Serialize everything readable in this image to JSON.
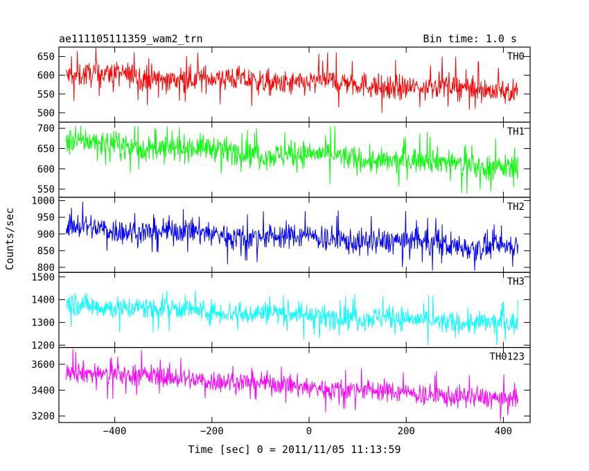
{
  "chart_data": {
    "type": "line",
    "title": "ae111105111359_wam2_trn",
    "subtitle": "Bin time: 1.0 s",
    "xlabel": "Time [sec] 0 = 2011/11/05 11:13:59",
    "ylabel": "Counts/sec",
    "xlim": [
      -515,
      455
    ],
    "xticks": [
      -400,
      -200,
      0,
      200,
      400
    ],
    "xtick_labels": [
      "−400",
      "−200",
      "0",
      "200",
      "400"
    ],
    "x_start": -500,
    "x_end": 430,
    "bin": 1.0,
    "grid": false,
    "panels": [
      {
        "name": "TH0",
        "color": "#ff0000",
        "ylim": [
          475,
          675
        ],
        "yticks": [
          500,
          550,
          600,
          650
        ],
        "start_mean": 603,
        "end_mean": 560,
        "noise": 30,
        "spike_max": 675,
        "spike_min": 480
      },
      {
        "name": "TH1",
        "color": "#00ff00",
        "ylim": [
          530,
          715
        ],
        "yticks": [
          550,
          600,
          650,
          700
        ],
        "start_mean": 665,
        "end_mean": 605,
        "noise": 28,
        "spike_max": 705,
        "spike_min": 535
      },
      {
        "name": "TH2",
        "color": "#0000ff",
        "ylim": [
          785,
          1010
        ],
        "yticks": [
          800,
          850,
          900,
          950,
          1000
        ],
        "start_mean": 920,
        "end_mean": 860,
        "noise": 35,
        "spike_max": 1005,
        "spike_min": 790
      },
      {
        "name": "TH3",
        "color": "#00ffff",
        "ylim": [
          1190,
          1520
        ],
        "yticks": [
          1200,
          1300,
          1400,
          1500
        ],
        "start_mean": 1380,
        "end_mean": 1290,
        "noise": 45,
        "spike_max": 1515,
        "spike_min": 1200
      },
      {
        "name": "TH0123",
        "color": "#ff00ff",
        "ylim": [
          3150,
          3730
        ],
        "yticks": [
          3200,
          3400,
          3600
        ],
        "start_mean": 3550,
        "end_mean": 3320,
        "noise": 75,
        "spike_max": 3720,
        "spike_min": 3160
      }
    ]
  }
}
